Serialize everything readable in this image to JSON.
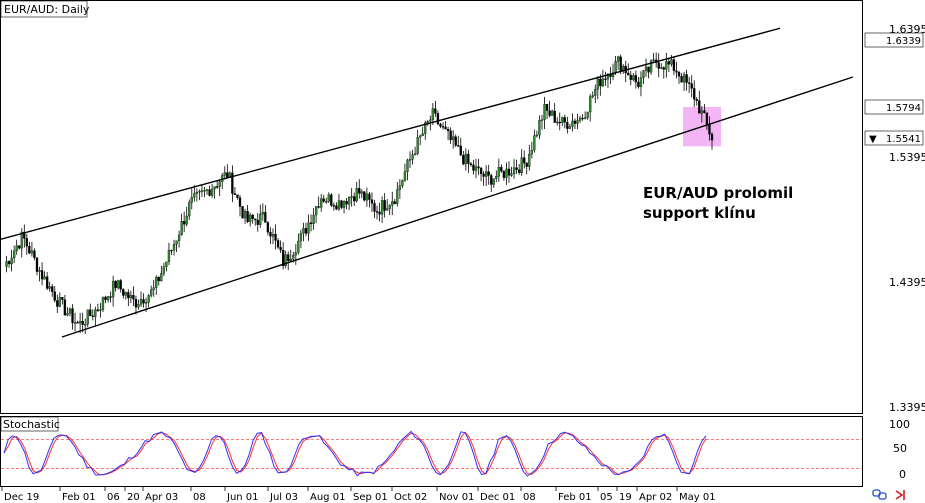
{
  "chart_data": {
    "type": "candlestick",
    "title": "EUR/AUD: Daily",
    "annotation": [
      "EUR/AUD prolomil",
      "support klínu"
    ],
    "y_axis_labels": [
      "1.6395",
      "1.6339",
      "1.5794",
      "1.5541",
      "1.5395",
      "1.4395",
      "1.3395"
    ],
    "current_price": "1.5541",
    "boxed_prices": [
      "1.6339",
      "1.5794",
      "1.5541"
    ],
    "x_tick_labels": [
      "Dec 19",
      "Feb 01",
      "06",
      "20",
      "Apr 03",
      "08",
      "Jun 01",
      "Jul 03",
      "Aug 01",
      "Sep 01",
      "Oct 02",
      "Nov 01",
      "Dec 01",
      "08",
      "Feb 01",
      "05",
      "19",
      "Apr 02",
      "May 01"
    ],
    "wedge": {
      "upper_line": [
        [
          0,
          1.4735
        ],
        [
          1,
          1.6425
        ]
      ],
      "lower_line": [
        [
          0,
          1.3955
        ],
        [
          1,
          1.6035
        ]
      ],
      "support_break_zone": [
        1.5795,
        1.548
      ]
    },
    "price_path_keypoints": [
      1.452,
      1.476,
      1.446,
      1.422,
      1.405,
      1.418,
      1.438,
      1.423,
      1.432,
      1.466,
      1.502,
      1.514,
      1.526,
      1.488,
      1.491,
      1.455,
      1.476,
      1.508,
      1.503,
      1.512,
      1.497,
      1.508,
      1.545,
      1.573,
      1.552,
      1.532,
      1.522,
      1.528,
      1.535,
      1.577,
      1.566,
      1.571,
      1.601,
      1.616,
      1.598,
      1.616,
      1.611,
      1.59,
      1.555
    ],
    "stochastic": {
      "label": "Stochastic",
      "levels": [
        "100",
        "50",
        "0"
      ],
      "overbought": 80,
      "oversold": 20,
      "k_colors": [
        "#3a3aff",
        "#ff2b2b"
      ]
    }
  },
  "colors": {
    "bull_candle": "#2e8b2e",
    "bear_candle": "#000000",
    "trendline": "#000000",
    "highlight": "#f0a3f0",
    "stoch_main": "#3030ff",
    "stoch_signal": "#ff3030",
    "level_line": "#ff5050"
  },
  "icons": {
    "bottom_right": [
      "link-icon",
      "arrow-icon"
    ]
  }
}
